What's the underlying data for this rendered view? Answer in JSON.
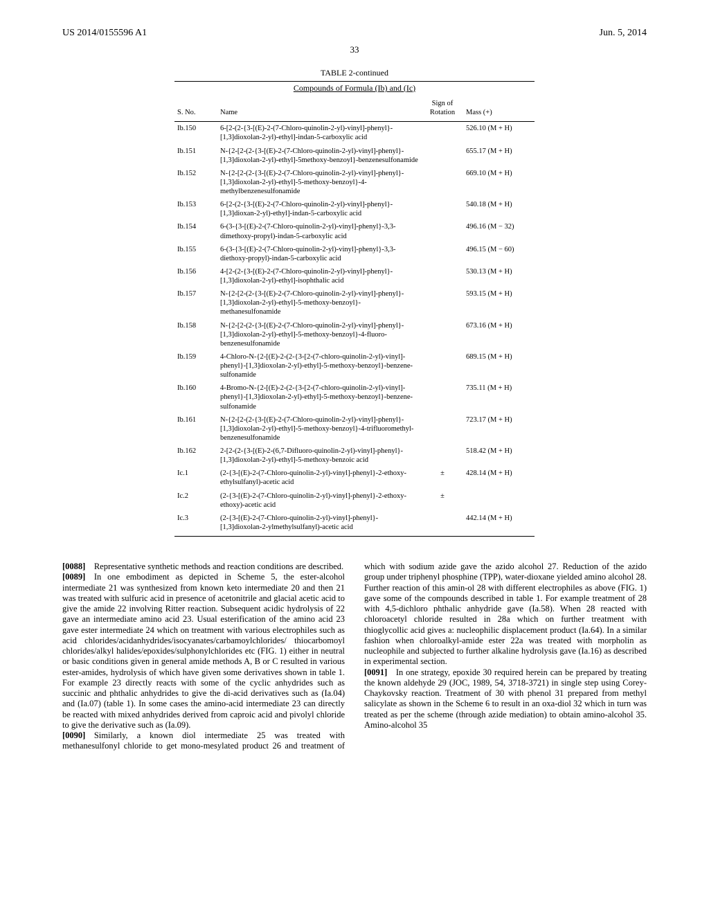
{
  "header": {
    "pub_number": "US 2014/0155596 A1",
    "pub_date": "Jun. 5, 2014"
  },
  "page_number": "33",
  "table": {
    "title": "TABLE 2-continued",
    "subtitle": "Compounds of Formula (Ib) and (Ic)",
    "columns": {
      "sno": "S. No.",
      "name": "Name",
      "sign": "Sign of Rotation",
      "mass": "Mass (+)"
    },
    "rows": [
      {
        "sno": "Ib.150",
        "name": "6-[2-(2-{3-[(E)-2-(7-Chloro-quinolin-2-yl)-vinyl]-phenyl}-[1,3]dioxolan-2-yl)-ethyl]-indan-5-carboxylic acid",
        "sign": "",
        "mass": "526.10 (M + H)"
      },
      {
        "sno": "Ib.151",
        "name": "N-{2-[2-(2-{3-[(E)-2-(7-Chloro-quinolin-2-yl)-vinyl]-phenyl}-[1,3]dioxolan-2-yl)-ethyl]-5methoxy-benzoyl}-benzenesulfonamide",
        "sign": "",
        "mass": "655.17 (M + H)"
      },
      {
        "sno": "Ib.152",
        "name": "N-{2-[2-(2-{3-[(E)-2-(7-Chloro-quinolin-2-yl)-vinyl]-phenyl}-[1,3]dioxolan-2-yl)-ethyl]-5-methoxy-benzoyl}-4-methylbenzenesulfonamide",
        "sign": "",
        "mass": "669.10 (M + H)"
      },
      {
        "sno": "Ib.153",
        "name": "6-[2-(2-{3-[(E)-2-(7-Chloro-quinolin-2-yl)-vinyl]-phenyl}-[1,3]dioxan-2-yl)-ethyl]-indan-5-carboxylic acid",
        "sign": "",
        "mass": "540.18 (M + H)"
      },
      {
        "sno": "Ib.154",
        "name": "6-(3-{3-[(E)-2-(7-Chloro-quinolin-2-yl)-vinyl]-phenyl}-3,3-dimethoxy-propyl)-indan-5-carboxylic acid",
        "sign": "",
        "mass": "496.16 (M − 32)"
      },
      {
        "sno": "Ib.155",
        "name": "6-(3-{3-[(E)-2-(7-Chloro-quinolin-2-yl)-vinyl]-phenyl}-3,3-diethoxy-propyl)-indan-5-carboxylic acid",
        "sign": "",
        "mass": "496.15 (M − 60)"
      },
      {
        "sno": "Ib.156",
        "name": "4-[2-(2-{3-[(E)-2-(7-Chloro-quinolin-2-yl)-vinyl]-phenyl}-[1,3]dioxolan-2-yl)-ethyl]-isophthalic acid",
        "sign": "",
        "mass": "530.13 (M + H)"
      },
      {
        "sno": "Ib.157",
        "name": "N-{2-[2-(2-{3-[(E)-2-(7-Chloro-quinolin-2-yl)-vinyl]-phenyl}-[1,3]dioxolan-2-yl)-ethyl]-5-methoxy-benzoyl}-methanesulfonamide",
        "sign": "",
        "mass": "593.15 (M + H)"
      },
      {
        "sno": "Ib.158",
        "name": "N-{2-[2-(2-{3-[(E)-2-(7-Chloro-quinolin-2-yl)-vinyl]-phenyl}-[1,3]dioxolan-2-yl)-ethyl]-5-methoxy-benzoyl}-4-fluoro-benzenesulfonamide",
        "sign": "",
        "mass": "673.16 (M + H)"
      },
      {
        "sno": "Ib.159",
        "name": "4-Chloro-N-{2-[(E)-2-(2-{3-[2-(7-chloro-quinolin-2-yl)-vinyl]-phenyl}-[1,3]dioxolan-2-yl)-ethyl]-5-methoxy-benzoyl}-benzene-sulfonamide",
        "sign": "",
        "mass": "689.15 (M + H)"
      },
      {
        "sno": "Ib.160",
        "name": "4-Bromo-N-{2-[(E)-2-(2-{3-[2-(7-chloro-quinolin-2-yl)-vinyl]-phenyl}-[1,3]dioxolan-2-yl)-ethyl]-5-methoxy-benzoyl}-benzene-sulfonamide",
        "sign": "",
        "mass": "735.11 (M + H)"
      },
      {
        "sno": "Ib.161",
        "name": "N-{2-[2-(2-{3-[(E)-2-(7-Chloro-quinolin-2-yl)-vinyl]-phenyl}-[1,3]dioxolan-2-yl)-ethyl]-5-methoxy-benzoyl}-4-trifluoromethyl-benzenesulfonamide",
        "sign": "",
        "mass": "723.17 (M + H)"
      },
      {
        "sno": "Ib.162",
        "name": "2-[2-(2-{3-[(E)-2-(6,7-Difluoro-quinolin-2-yl)-vinyl]-phenyl}-[1,3]dioxolan-2-yl)-ethyl]-5-methoxy-benzoic acid",
        "sign": "",
        "mass": "518.42 (M + H)"
      },
      {
        "sno": "Ic.1",
        "name": "(2-{3-[(E)-2-(7-Chloro-quinolin-2-yl)-vinyl]-phenyl}-2-ethoxy-ethylsulfanyl)-acetic acid",
        "sign": "±",
        "mass": "428.14 (M + H)"
      },
      {
        "sno": "Ic.2",
        "name": "(2-{3-[(E)-2-(7-Chloro-quinolin-2-yl)-vinyl]-phenyl}-2-ethoxy-ethoxy)-acetic acid",
        "sign": "±",
        "mass": ""
      },
      {
        "sno": "Ic.3",
        "name": "(2-{3-[(E)-2-(7-Chloro-quinolin-2-yl)-vinyl]-phenyl}-[1,3]dioxolan-2-ylmethylsulfanyl)-acetic acid",
        "sign": "",
        "mass": "442.14 (M + H)"
      }
    ]
  },
  "paragraphs": [
    {
      "num": "[0088]",
      "text": "Representative synthetic methods and reaction conditions are described."
    },
    {
      "num": "[0089]",
      "text": "In one embodiment as depicted in Scheme 5, the ester-alcohol intermediate 21 was synthesized from known keto intermediate 20 and then 21 was treated with sulfuric acid in presence of acetonitrile and glacial acetic acid to give the amide 22 involving Ritter reaction. Subsequent acidic hydrolysis of 22 gave an intermediate amino acid 23. Usual esterification of the amino acid 23 gave ester intermediate 24 which on treatment with various electrophiles such as acid chlorides/acidanhydrides/isocyanates/carbamoylchlorides/ thiocarbomoyl chlorides/alkyl halides/epoxides/sulphonylchlorides etc (FIG. 1) either in neutral or basic conditions given in general amide methods A, B or C resulted in various ester-amides, hydrolysis of which have given some derivatives shown in table 1. For example 23 directly reacts with some of the cyclic anhydrides such as succinic and phthalic anhydrides to give the di-acid derivatives such as (Ia.04) and (Ia.07) (table 1). In some cases the amino-acid intermediate 23 can directly be reacted with mixed anhydrides derived from caproic acid and pivolyl chloride to give the derivative such as (Ia.09)."
    },
    {
      "num": "[0090]",
      "text": "Similarly, a known diol intermediate 25 was treated with methanesulfonyl chloride to get mono-mesylated product 26 and treatment of which with sodium azide gave the azido alcohol 27. Reduction of the azido group under triphenyl phosphine (TPP), water-dioxane yielded amino alcohol 28. Further reaction of this amin-ol 28 with different electrophiles as above (FIG. 1) gave some of the compounds described in table 1. For example treatment of 28 with 4,5-dichloro phthalic anhydride gave (Ia.58). When 28 reacted with chloroacetyl chloride resulted in 28a which on further treatment with thioglycollic acid gives a: nucleophilic displacement product (Ia.64). In a similar fashion when chloroalkyl-amide ester 22a was treated with morpholin as nucleophile and subjected to further alkaline hydrolysis gave (Ia.16) as described in experimental section."
    },
    {
      "num": "[0091]",
      "text": "In one strategy, epoxide 30 required herein can be prepared by treating the known aldehyde 29 (JOC, 1989, 54, 3718-3721) in single step using Corey-Chaykovsky reaction. Treatment of 30 with phenol 31 prepared from methyl salicylate as shown in the Scheme 6 to result in an oxa-diol 32 which in turn was treated as per the scheme (through azide mediation) to obtain amino-alcohol 35. Amino-alcohol 35"
    }
  ]
}
